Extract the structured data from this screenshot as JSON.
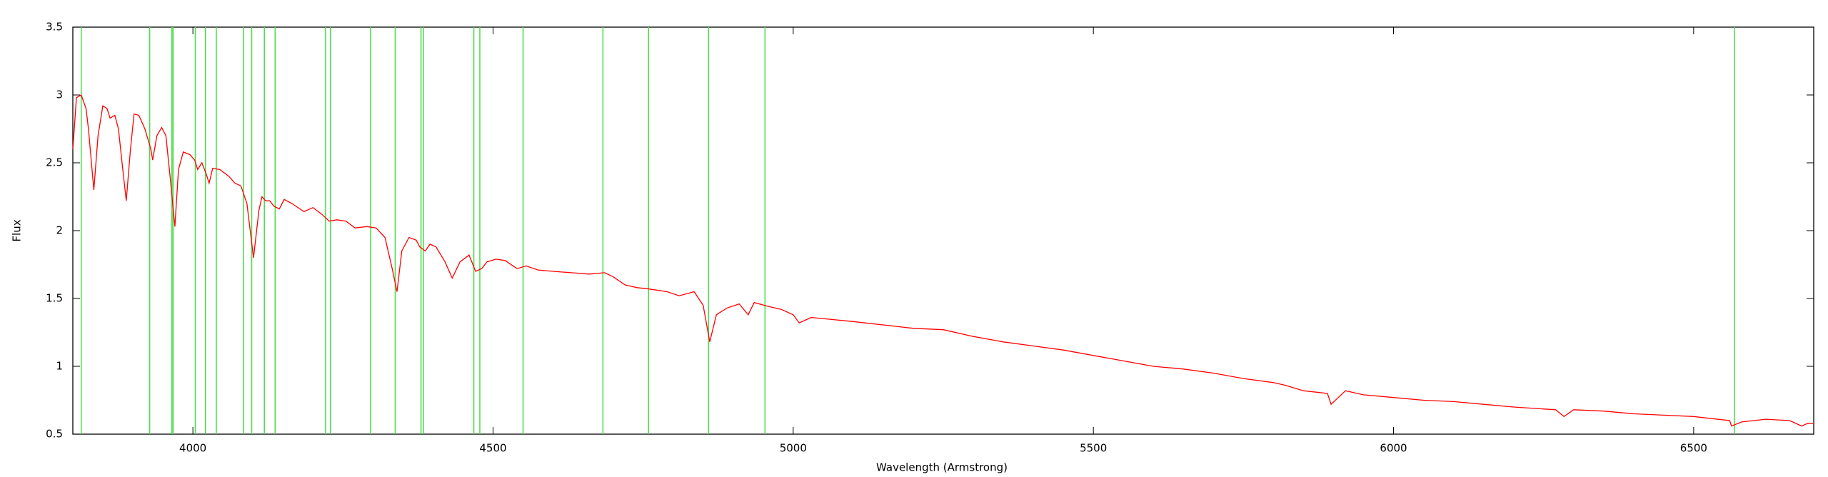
{
  "chart_data": {
    "type": "line",
    "xlabel": "Wavelength (Armstrong)",
    "ylabel": "Flux",
    "xlim": [
      3800,
      6700
    ],
    "ylim": [
      0.5,
      3.5
    ],
    "xticks": [
      4000,
      4500,
      5000,
      5500,
      6000,
      6500
    ],
    "yticks": [
      0.5,
      1,
      1.5,
      2,
      2.5,
      3,
      3.5
    ],
    "reference_lines": [
      3814,
      3928,
      3965,
      3967,
      4004,
      4021,
      4039,
      4084,
      4098,
      4119,
      4137,
      4221,
      4229,
      4296,
      4337,
      4380,
      4384,
      4468,
      4478,
      4550,
      4683,
      4759,
      4859,
      4953,
      6568
    ],
    "reference_line_color": "#44dd44",
    "x": [
      3800,
      3806,
      3814,
      3822,
      3826,
      3835,
      3842,
      3850,
      3857,
      3862,
      3870,
      3876,
      3882,
      3889,
      3896,
      3902,
      3910,
      3920,
      3930,
      3933,
      3940,
      3948,
      3955,
      3962,
      3970,
      3976,
      3984,
      3995,
      4003,
      4008,
      4015,
      4022,
      4027,
      4033,
      4045,
      4060,
      4070,
      4080,
      4090,
      4101,
      4110,
      4115,
      4121,
      4128,
      4135,
      4144,
      4152,
      4165,
      4185,
      4200,
      4215,
      4227,
      4240,
      4255,
      4270,
      4290,
      4305,
      4320,
      4332,
      4340,
      4348,
      4360,
      4372,
      4378,
      4387,
      4395,
      4405,
      4420,
      4432,
      4445,
      4460,
      4471,
      4481,
      4490,
      4505,
      4520,
      4540,
      4555,
      4575,
      4600,
      4630,
      4660,
      4686,
      4700,
      4720,
      4740,
      4760,
      4790,
      4810,
      4835,
      4850,
      4861,
      4872,
      4890,
      4910,
      4925,
      4935,
      4960,
      4980,
      5000,
      5010,
      5030,
      5100,
      5200,
      5250,
      5300,
      5350,
      5400,
      5450,
      5500,
      5550,
      5600,
      5650,
      5700,
      5750,
      5800,
      5820,
      5850,
      5890,
      5896,
      5920,
      5950,
      6000,
      6050,
      6100,
      6150,
      6200,
      6270,
      6284,
      6300,
      6350,
      6400,
      6450,
      6500,
      6560,
      6563,
      6580,
      6620,
      6660,
      6680,
      6690,
      6700
    ],
    "series": [
      {
        "color": "#ff0000",
        "values": [
          2.6,
          2.98,
          3.0,
          2.9,
          2.75,
          2.3,
          2.7,
          2.92,
          2.9,
          2.83,
          2.85,
          2.75,
          2.5,
          2.22,
          2.6,
          2.86,
          2.85,
          2.75,
          2.6,
          2.52,
          2.7,
          2.76,
          2.7,
          2.4,
          2.03,
          2.45,
          2.58,
          2.56,
          2.52,
          2.45,
          2.5,
          2.42,
          2.35,
          2.46,
          2.45,
          2.4,
          2.35,
          2.33,
          2.2,
          1.8,
          2.15,
          2.25,
          2.22,
          2.22,
          2.18,
          2.16,
          2.23,
          2.2,
          2.14,
          2.17,
          2.12,
          2.07,
          2.08,
          2.07,
          2.02,
          2.03,
          2.02,
          1.95,
          1.72,
          1.55,
          1.85,
          1.95,
          1.93,
          1.88,
          1.85,
          1.9,
          1.88,
          1.77,
          1.65,
          1.77,
          1.82,
          1.7,
          1.72,
          1.77,
          1.79,
          1.78,
          1.72,
          1.74,
          1.71,
          1.7,
          1.69,
          1.68,
          1.69,
          1.66,
          1.6,
          1.58,
          1.57,
          1.55,
          1.52,
          1.55,
          1.45,
          1.18,
          1.38,
          1.43,
          1.46,
          1.38,
          1.47,
          1.44,
          1.42,
          1.38,
          1.32,
          1.36,
          1.33,
          1.28,
          1.27,
          1.22,
          1.18,
          1.15,
          1.12,
          1.08,
          1.04,
          1.0,
          0.98,
          0.95,
          0.91,
          0.88,
          0.86,
          0.82,
          0.8,
          0.72,
          0.82,
          0.79,
          0.77,
          0.75,
          0.74,
          0.72,
          0.7,
          0.68,
          0.63,
          0.68,
          0.67,
          0.65,
          0.64,
          0.63,
          0.6,
          0.56,
          0.59,
          0.61,
          0.6,
          0.56,
          0.58,
          0.58
        ]
      }
    ]
  }
}
